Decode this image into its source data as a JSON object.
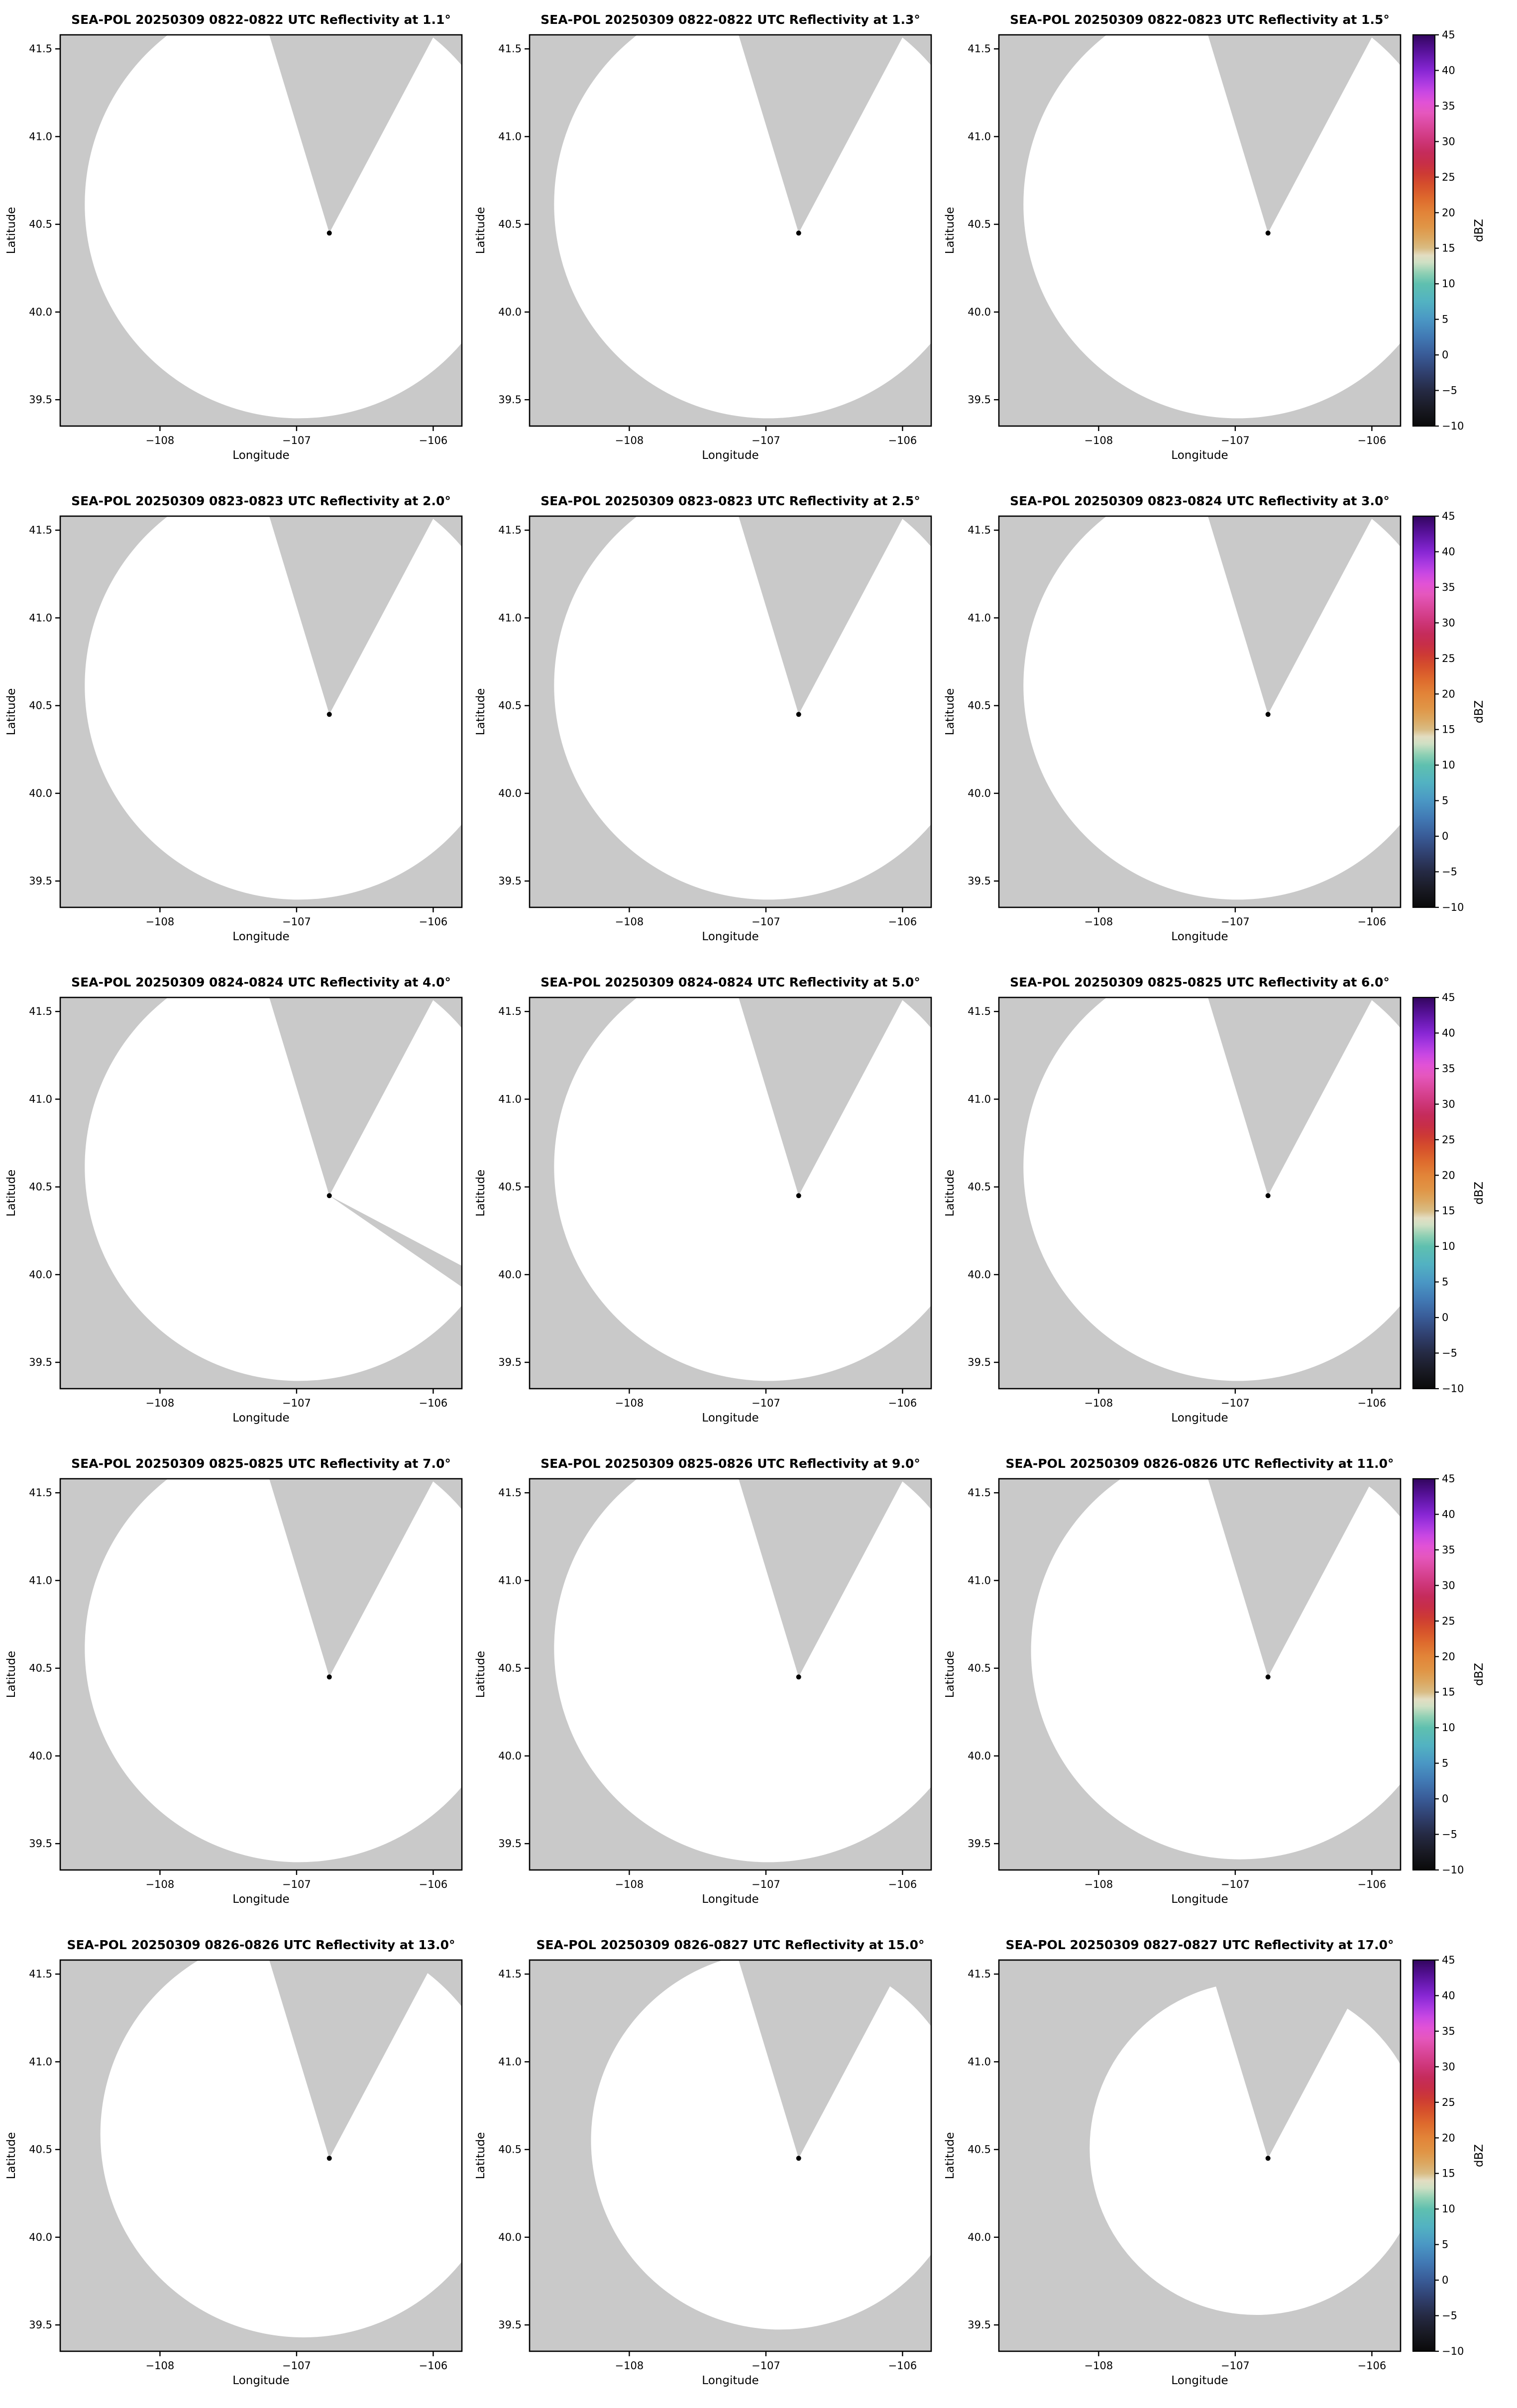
{
  "figure": {
    "description": "Grid of 15 SEA-POL radar PPI reflectivity map panels (5 rows x 3 columns), each row with a shared dBZ colorbar on the right. All panels show an empty (echo-free) white coverage circle over a gray no-data background, with a gray blocked sector wedge extending north-northeast from the radar and a black radar location marker."
  },
  "chart_data": {
    "type": "heatmap",
    "subtype": "radar-ppi-map-grid",
    "grid": {
      "rows": 5,
      "cols": 3
    },
    "x": {
      "label": "Longitude",
      "range": [
        -108.73,
        -105.79
      ],
      "tick_values": [
        -108,
        -107,
        -106
      ],
      "tick_labels": [
        "−108",
        "−107",
        "−106"
      ]
    },
    "y": {
      "label": "Latitude",
      "range": [
        39.35,
        41.58
      ],
      "tick_values": [
        41.5,
        41.0,
        40.5,
        40.0,
        39.5
      ],
      "tick_labels": [
        "41.5",
        "41.0",
        "40.5",
        "40.0",
        "39.5"
      ]
    },
    "geometry": {
      "radar": {
        "lon": -106.76,
        "lat": 40.45
      },
      "wedge": {
        "top_left_lon": -107.2,
        "top_right_lon": -105.99
      },
      "coverage_default": {
        "cx": 0.594,
        "cy": 0.433,
        "r": 0.533
      }
    },
    "colors": {
      "nodata_gray": "#c9c9c9",
      "coverage_white": "#ffffff",
      "marker_black": "#000000",
      "axis_black": "#000000"
    },
    "panels": [
      {
        "title": "SEA-POL 20250309 0822-0822 UTC Reflectivity at 1.1°",
        "elevation_deg": 1.1,
        "time_utc": "0822-0822"
      },
      {
        "title": "SEA-POL 20250309 0822-0822 UTC Reflectivity at 1.3°",
        "elevation_deg": 1.3,
        "time_utc": "0822-0822"
      },
      {
        "title": "SEA-POL 20250309 0822-0823 UTC Reflectivity at 1.5°",
        "elevation_deg": 1.5,
        "time_utc": "0822-0823"
      },
      {
        "title": "SEA-POL 20250309 0823-0823 UTC Reflectivity at 2.0°",
        "elevation_deg": 2.0,
        "time_utc": "0823-0823"
      },
      {
        "title": "SEA-POL 20250309 0823-0823 UTC Reflectivity at 2.5°",
        "elevation_deg": 2.5,
        "time_utc": "0823-0823"
      },
      {
        "title": "SEA-POL 20250309 0823-0824 UTC Reflectivity at 3.0°",
        "elevation_deg": 3.0,
        "time_utc": "0823-0824"
      },
      {
        "title": "SEA-POL 20250309 0824-0824 UTC Reflectivity at 4.0°",
        "elevation_deg": 4.0,
        "time_utc": "0824-0824",
        "blocked_ray": {
          "lat_top": 40.05,
          "lat_bottom": 39.93
        }
      },
      {
        "title": "SEA-POL 20250309 0824-0824 UTC Reflectivity at 5.0°",
        "elevation_deg": 5.0,
        "time_utc": "0824-0824"
      },
      {
        "title": "SEA-POL 20250309 0825-0825 UTC Reflectivity at 6.0°",
        "elevation_deg": 6.0,
        "time_utc": "0825-0825"
      },
      {
        "title": "SEA-POL 20250309 0825-0825 UTC Reflectivity at 7.0°",
        "elevation_deg": 7.0,
        "time_utc": "0825-0825"
      },
      {
        "title": "SEA-POL 20250309 0825-0826 UTC Reflectivity at 9.0°",
        "elevation_deg": 9.0,
        "time_utc": "0825-0826"
      },
      {
        "title": "SEA-POL 20250309 0826-0826 UTC Reflectivity at 11.0°",
        "elevation_deg": 11.0,
        "time_utc": "0826-0826",
        "coverage": {
          "cx": 0.6,
          "cy": 0.439,
          "r": 0.52
        }
      },
      {
        "title": "SEA-POL 20250309 0826-0826 UTC Reflectivity at 13.0°",
        "elevation_deg": 13.0,
        "time_utc": "0826-0826",
        "coverage": {
          "cx": 0.606,
          "cy": 0.445,
          "r": 0.506
        }
      },
      {
        "title": "SEA-POL 20250309 0826-0827 UTC Reflectivity at 15.0°",
        "elevation_deg": 15.0,
        "time_utc": "0826-0827",
        "coverage": {
          "cx": 0.624,
          "cy": 0.461,
          "r": 0.471
        }
      },
      {
        "title": "SEA-POL 20250309 0827-0827 UTC Reflectivity at 17.0°",
        "elevation_deg": 17.0,
        "time_utc": "0827-0827",
        "coverage": {
          "cx": 0.641,
          "cy": 0.481,
          "r": 0.415
        }
      }
    ],
    "colorbar": {
      "label": "dBZ",
      "vmin": -10,
      "vmax": 45,
      "tick_values": [
        45,
        40,
        35,
        30,
        25,
        20,
        15,
        10,
        5,
        0,
        -5,
        -10
      ],
      "tick_labels": [
        "45",
        "40",
        "35",
        "30",
        "25",
        "20",
        "15",
        "10",
        "5",
        "0",
        "−5",
        "−10"
      ],
      "stops": [
        [
          -10,
          "#0a0a0a"
        ],
        [
          -7.5,
          "#191a24"
        ],
        [
          -5,
          "#252a44"
        ],
        [
          -2.5,
          "#30406f"
        ],
        [
          0,
          "#395b97"
        ],
        [
          2.5,
          "#4179b4"
        ],
        [
          5,
          "#4a97c4"
        ],
        [
          7.5,
          "#52b2c2"
        ],
        [
          10,
          "#5fc0af"
        ],
        [
          11.5,
          "#8fd0b4"
        ],
        [
          13,
          "#cfe0c4"
        ],
        [
          14,
          "#e3ddc1"
        ],
        [
          15,
          "#d9bc84"
        ],
        [
          16.5,
          "#dca75f"
        ],
        [
          18,
          "#e09546"
        ],
        [
          20,
          "#e28438"
        ],
        [
          22,
          "#de6a2d"
        ],
        [
          24,
          "#d54e2c"
        ],
        [
          25.5,
          "#cd3a34"
        ],
        [
          27,
          "#c72e48"
        ],
        [
          28.5,
          "#c52c5c"
        ],
        [
          30,
          "#cd3577"
        ],
        [
          32,
          "#d94699"
        ],
        [
          34,
          "#e557bd"
        ],
        [
          35.5,
          "#e152d6"
        ],
        [
          37,
          "#c847e3"
        ],
        [
          38.5,
          "#a638e0"
        ],
        [
          40,
          "#8726d3"
        ],
        [
          41.5,
          "#6c1bb5"
        ],
        [
          43,
          "#531093"
        ],
        [
          45,
          "#32065e"
        ]
      ],
      "note": "No reflectivity echoes are present in any panel; the scanned coverage area is blank (white)."
    }
  }
}
